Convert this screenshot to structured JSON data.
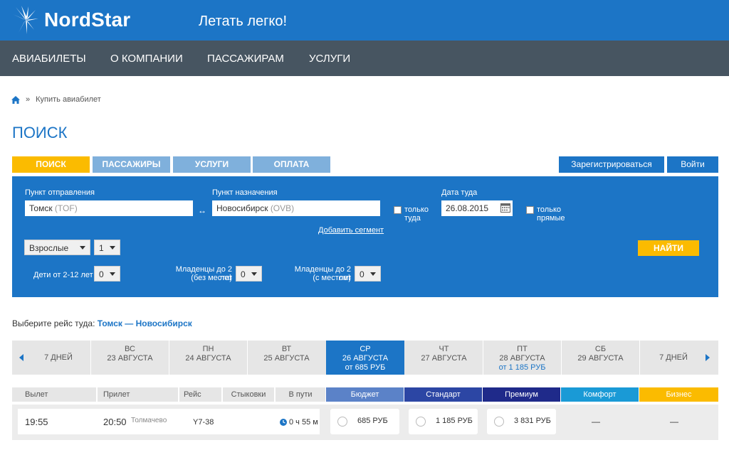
{
  "brand": {
    "name": "NordStar",
    "tagline": "Летать легко!"
  },
  "nav": [
    "АВИАБИЛЕТЫ",
    "О КОМПАНИИ",
    "ПАССАЖИРАМ",
    "УСЛУГИ"
  ],
  "breadcrumb": {
    "separator": "»",
    "current": "Купить авиабилет"
  },
  "page_title": "ПОИСК",
  "steps": [
    "ПОИСК",
    "ПАССАЖИРЫ",
    "УСЛУГИ",
    "ОПЛАТА"
  ],
  "auth": {
    "register": "Зарегистрироваться",
    "login": "Войти"
  },
  "search": {
    "from_label": "Пункт отправления",
    "from_city": "Томск",
    "from_code": "(TOF)",
    "to_label": "Пункт назначения",
    "to_city": "Новосибирск",
    "to_code": "(OVB)",
    "swap": "↔",
    "only_there_line1": "только",
    "only_there_line2": "туда",
    "date_label": "Дата туда",
    "date_value": "26.08.2015",
    "direct_line1": "только",
    "direct_line2": "прямые",
    "add_segment": "Добавить сегмент",
    "adults_type": "Взрослые",
    "adults_count": "1",
    "children_label": "Дети от 2-12 лет",
    "children_count": "0",
    "infants_no_seat_line1": "Младенцы до 2 лет",
    "infants_no_seat_line2": "(без места)",
    "infants_no_seat_count": "0",
    "infants_seat_line1": "Младенцы до 2 лет",
    "infants_seat_line2": "(с местом)",
    "infants_seat_count": "0",
    "find_button": "НАЙТИ"
  },
  "choose": {
    "prefix": "Выберите рейс туда:",
    "route": "Томск — Новосибирск"
  },
  "date_strip": {
    "prev": "7 ДНЕЙ",
    "next": "7 ДНЕЙ",
    "days": [
      {
        "dow": "ВС",
        "date": "23 АВГУСТА",
        "price": ""
      },
      {
        "dow": "ПН",
        "date": "24 АВГУСТА",
        "price": ""
      },
      {
        "dow": "ВТ",
        "date": "25 АВГУСТА",
        "price": ""
      },
      {
        "dow": "СР",
        "date": "26 АВГУСТА",
        "price": "от 685 РУБ",
        "active": true
      },
      {
        "dow": "ЧТ",
        "date": "27 АВГУСТА",
        "price": ""
      },
      {
        "dow": "ПТ",
        "date": "28 АВГУСТА",
        "price": "от 1 185 РУБ"
      },
      {
        "dow": "СБ",
        "date": "29 АВГУСТА",
        "price": ""
      }
    ]
  },
  "table": {
    "headers": [
      "Вылет",
      "Прилет",
      "Рейс",
      "Стыковки",
      "В пути"
    ],
    "fares": [
      {
        "name": "Бюджет",
        "color": "#5b82c8"
      },
      {
        "name": "Стандарт",
        "color": "#2c46a4"
      },
      {
        "name": "Премиум",
        "color": "#1f2a8a"
      },
      {
        "name": "Комфорт",
        "color": "#1a9ad6"
      },
      {
        "name": "Бизнес",
        "color": "#fbbb00"
      }
    ]
  },
  "flight": {
    "departure": "19:55",
    "arrival": "20:50",
    "airport": "Толмачево",
    "number": "Y7-38",
    "duration": "0 ч 55 м",
    "prices": [
      "685 РУБ",
      "1 185 РУБ",
      "3 831 РУБ"
    ],
    "unavailable": "—"
  },
  "colors": {
    "primary": "#1c75c6",
    "nav_bg": "#475561",
    "accent": "#fbbb00"
  }
}
